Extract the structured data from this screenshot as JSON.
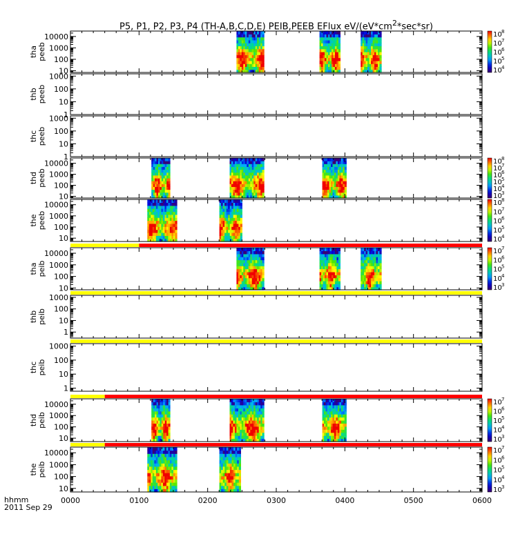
{
  "chart_data": {
    "type": "heatmap",
    "title": "P5, P1, P2, P3, P4 (TH-A,B,C,D,E) PEIB,PEEB EFlux eV/(eV*cm2*sec*sr)",
    "x_tick_labels": [
      "0000",
      "0100",
      "0200",
      "0300",
      "0400",
      "0500",
      "0600"
    ],
    "x_range_hours": [
      0,
      6
    ],
    "x_label": "hhmm",
    "date_label": "2011 Sep 29",
    "y_scale": "log",
    "panels": [
      {
        "name": "tha-peeb",
        "probe": "tha",
        "instrument": "peeb",
        "yrange": [
          7,
          30000
        ],
        "yticks": [
          "10",
          "100",
          "1000",
          "10000"
        ],
        "colorbar": true,
        "colorbar_ticks": [
          "10",
          "10",
          "10",
          "10",
          "10"
        ],
        "colorbar_exps": [
          "8",
          "7",
          "6",
          "5",
          "4"
        ],
        "segments": [
          [
            2.42,
            2.82
          ],
          [
            3.63,
            3.93
          ],
          [
            4.23,
            4.53
          ]
        ],
        "status_bar": null
      },
      {
        "name": "thb-peeb",
        "probe": "thb",
        "instrument": "peeb",
        "yrange": [
          1,
          1500
        ],
        "yticks": [
          "1",
          "10",
          "100",
          "1000"
        ],
        "colorbar": false,
        "segments": [],
        "status_bar": null
      },
      {
        "name": "thc-peeb",
        "probe": "thc",
        "instrument": "peeb",
        "yrange": [
          1,
          1500
        ],
        "yticks": [
          "1",
          "10",
          "100",
          "1000"
        ],
        "colorbar": false,
        "segments": [],
        "status_bar": null
      },
      {
        "name": "thd-peeb",
        "probe": "thd",
        "instrument": "peeb",
        "yrange": [
          7,
          30000
        ],
        "yticks": [
          "10",
          "100",
          "1000",
          "10000"
        ],
        "colorbar": true,
        "colorbar_ticks": [
          "10",
          "10",
          "10",
          "10",
          "10",
          "10"
        ],
        "colorbar_exps": [
          "8",
          "7",
          "6",
          "5",
          "4",
          "3"
        ],
        "segments": [
          [
            1.18,
            1.45
          ],
          [
            2.32,
            2.82
          ],
          [
            3.67,
            4.02
          ]
        ],
        "status_bar": null
      },
      {
        "name": "the-peeb",
        "probe": "the",
        "instrument": "peeb",
        "yrange": [
          5,
          30000
        ],
        "yticks": [
          "10",
          "100",
          "1000",
          "10000"
        ],
        "colorbar": true,
        "colorbar_ticks": [
          "10",
          "10",
          "10",
          "10",
          "10"
        ],
        "colorbar_exps": [
          "8",
          "7",
          "6",
          "5",
          "4"
        ],
        "segments": [
          [
            1.12,
            1.55
          ],
          [
            2.17,
            2.5
          ]
        ],
        "status_bar": null
      },
      {
        "name": "tha-peib",
        "probe": "tha",
        "instrument": "peib",
        "yrange": [
          7,
          30000
        ],
        "yticks": [
          "10",
          "100",
          "1000",
          "10000"
        ],
        "colorbar": true,
        "colorbar_ticks": [
          "10",
          "10",
          "10",
          "10",
          "10"
        ],
        "colorbar_exps": [
          "7",
          "6",
          "5",
          "4",
          "3"
        ],
        "segments": [
          [
            2.42,
            2.82
          ],
          [
            3.63,
            3.93
          ],
          [
            4.23,
            4.53
          ]
        ],
        "status_bar": [
          [
            "#ffff00",
            0,
            1.0
          ],
          [
            "#ff0000",
            1.0,
            6
          ]
        ]
      },
      {
        "name": "thb-peib",
        "probe": "thb",
        "instrument": "peib",
        "yrange": [
          0.3,
          1500
        ],
        "yticks": [
          "1",
          "10",
          "100",
          "1000"
        ],
        "colorbar": false,
        "segments": [],
        "status_bar": [
          [
            "#ffff00",
            0,
            6
          ]
        ]
      },
      {
        "name": "thc-peib",
        "probe": "thc",
        "instrument": "peib",
        "yrange": [
          0.6,
          1500
        ],
        "yticks": [
          "1",
          "10",
          "100",
          "1000"
        ],
        "colorbar": false,
        "segments": [],
        "status_bar": [
          [
            "#ffff00",
            0,
            6
          ]
        ]
      },
      {
        "name": "thd-peib",
        "probe": "thd",
        "instrument": "peib",
        "yrange": [
          5,
          30000
        ],
        "yticks": [
          "10",
          "100",
          "1000",
          "10000"
        ],
        "colorbar": true,
        "colorbar_ticks": [
          "10",
          "10",
          "10",
          "10",
          "10"
        ],
        "colorbar_exps": [
          "7",
          "6",
          "5",
          "4",
          "3"
        ],
        "segments": [
          [
            1.18,
            1.45
          ],
          [
            2.32,
            2.82
          ],
          [
            3.67,
            4.02
          ]
        ],
        "status_bar": [
          [
            "#ffff00",
            0,
            0.5
          ],
          [
            "#ff0000",
            0.5,
            6
          ]
        ]
      },
      {
        "name": "the-peib",
        "probe": "the",
        "instrument": "peib",
        "yrange": [
          5,
          30000
        ],
        "yticks": [
          "10",
          "100",
          "1000",
          "10000"
        ],
        "colorbar": true,
        "colorbar_ticks": [
          "10",
          "10",
          "10",
          "10",
          "10"
        ],
        "colorbar_exps": [
          "7",
          "6",
          "5",
          "4",
          "3"
        ],
        "segments": [
          [
            1.12,
            1.55
          ],
          [
            2.17,
            2.48
          ]
        ],
        "status_bar": [
          [
            "#ffff00",
            0,
            0.5
          ],
          [
            "#ff0000",
            0.5,
            6
          ]
        ]
      }
    ]
  }
}
